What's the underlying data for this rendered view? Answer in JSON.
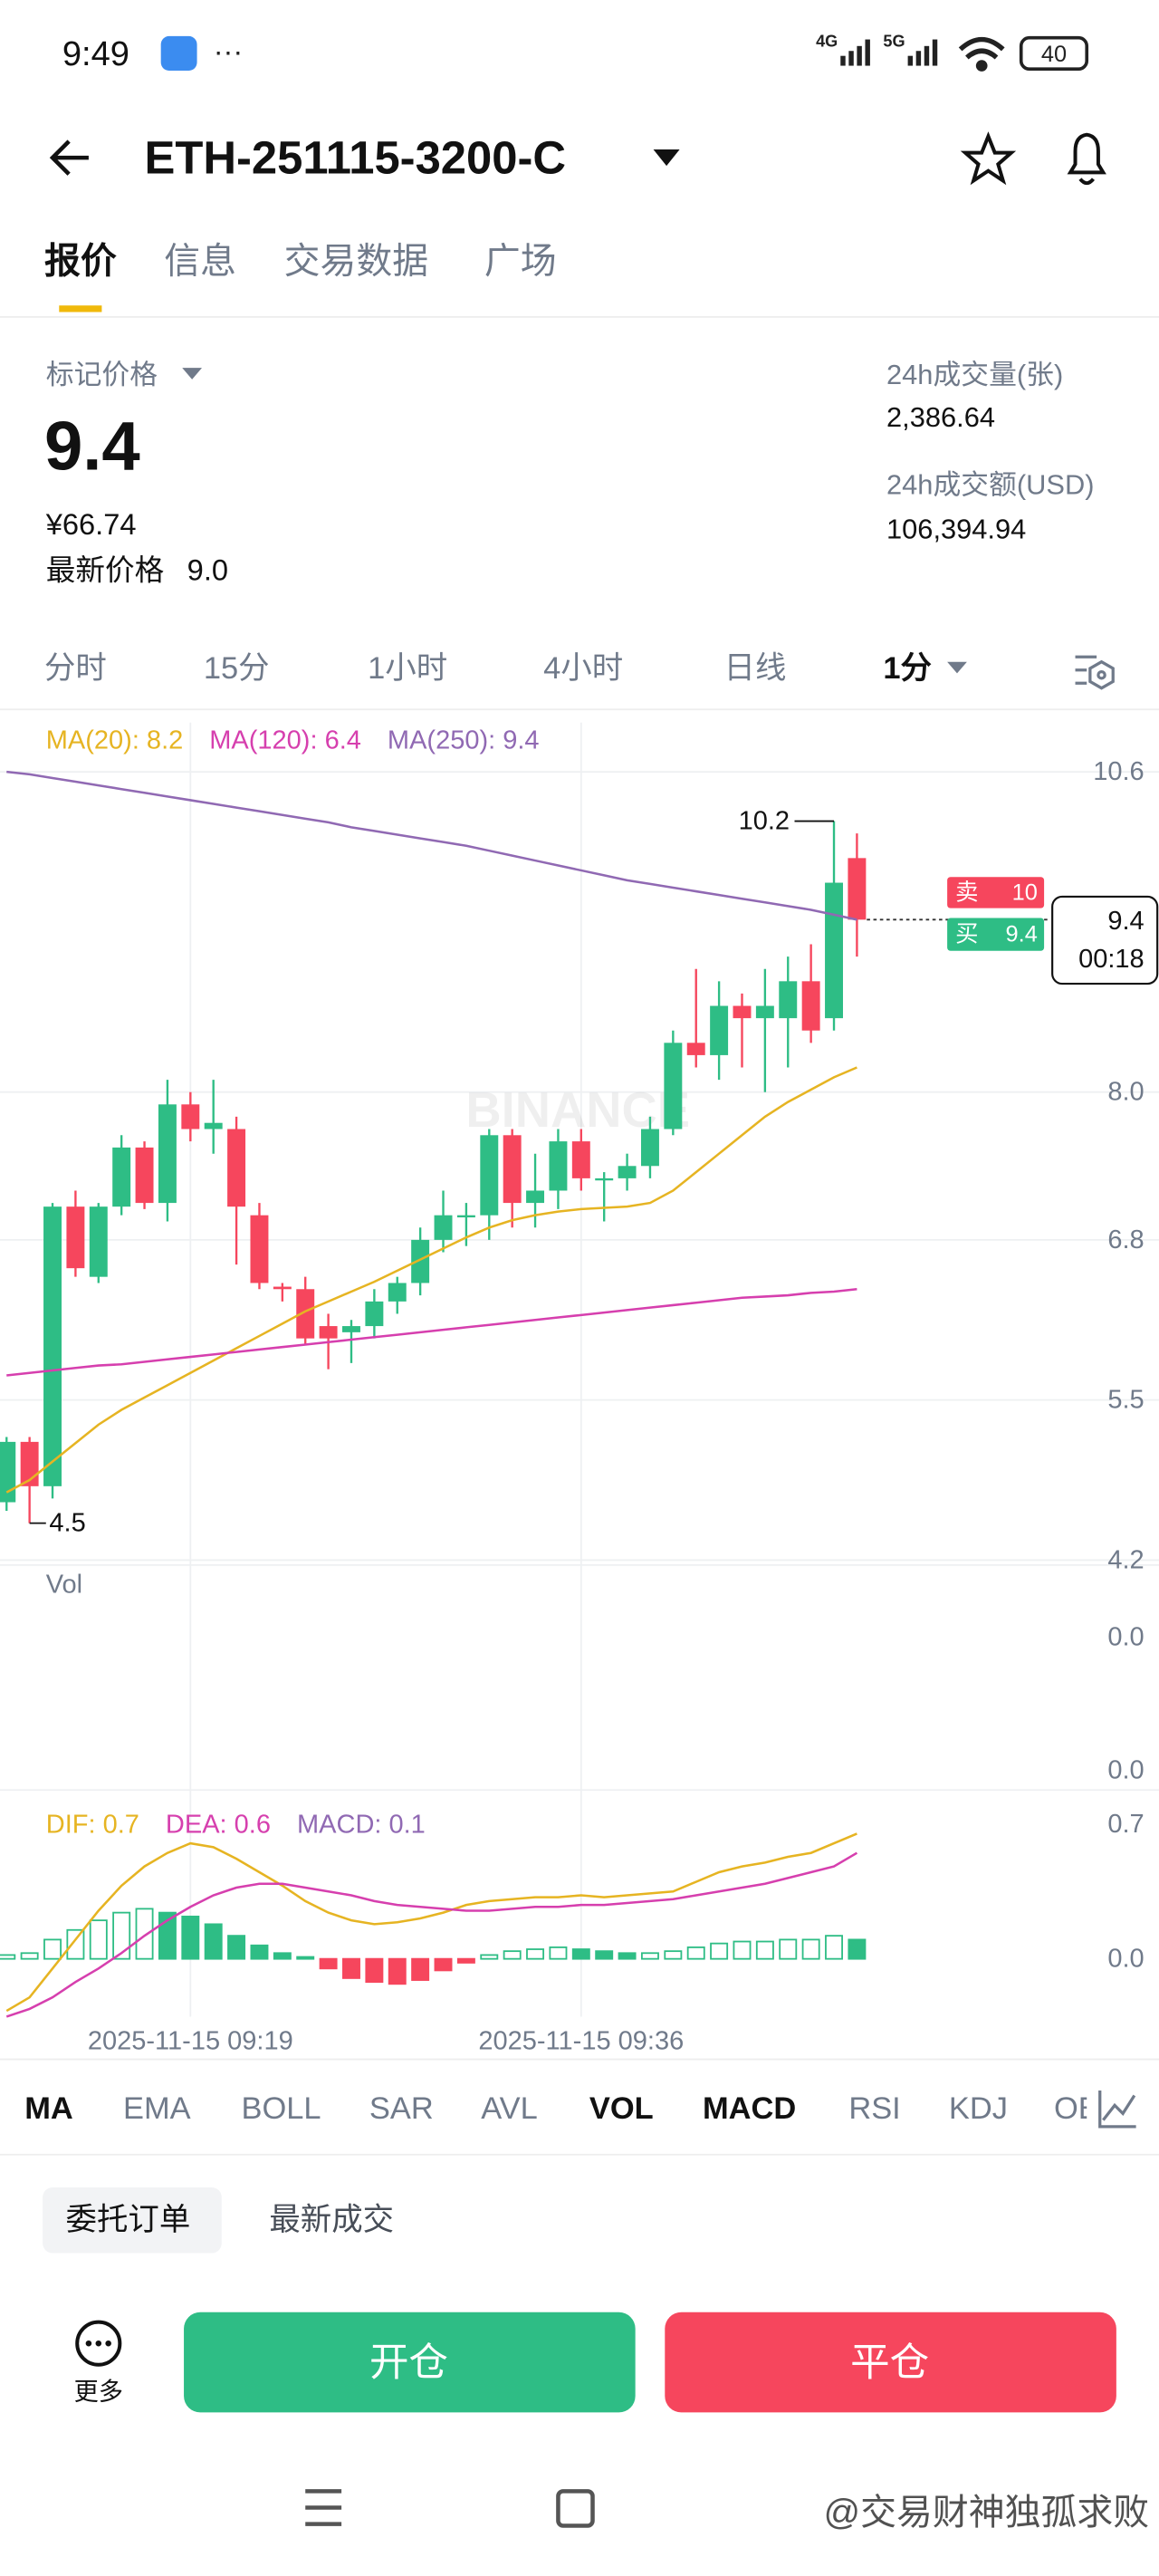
{
  "status_bar": {
    "time": "9:49",
    "signal_1": "4G",
    "signal_2": "5G",
    "battery": "40"
  },
  "header": {
    "title": "ETH-251115-3200-C"
  },
  "tabs": [
    "报价",
    "信息",
    "交易数据",
    "广场"
  ],
  "summary": {
    "mark_label": "标记价格",
    "mark_price": "9.4",
    "cny": "¥66.74",
    "last_label": "最新价格",
    "last_price": "9.0",
    "volume_label": "24h成交量(张)",
    "volume": "2,386.64",
    "amount_label": "24h成交额(USD)",
    "amount": "106,394.94"
  },
  "intervals": [
    "分时",
    "15分",
    "1小时",
    "4小时",
    "日线",
    "1分"
  ],
  "chart_data": {
    "type": "candlestick",
    "watermark": "BINANCE",
    "categories": [
      null,
      null,
      null,
      null,
      null,
      null,
      null,
      null,
      "2025-11-15 09:19",
      null,
      null,
      null,
      null,
      null,
      null,
      null,
      null,
      null,
      null,
      null,
      null,
      null,
      null,
      null,
      null,
      "2025-11-15 09:36",
      null,
      null,
      null,
      null,
      null,
      null,
      null,
      null,
      null,
      null,
      null,
      null
    ],
    "open": [
      4.67,
      5.16,
      4.8,
      7.07,
      6.5,
      7.07,
      7.55,
      7.1,
      7.9,
      7.7,
      7.7,
      7.0,
      6.42,
      6.4,
      6.1,
      6.05,
      6.1,
      6.3,
      6.45,
      6.8,
      7.0,
      7.0,
      7.65,
      7.1,
      7.2,
      7.6,
      7.3,
      7.3,
      7.4,
      7.7,
      8.4,
      8.3,
      8.7,
      8.6,
      8.6,
      8.9,
      8.6,
      9.9
    ],
    "high": [
      5.2,
      5.2,
      7.1,
      7.2,
      7.1,
      7.65,
      7.6,
      8.1,
      8.0,
      8.1,
      7.8,
      7.1,
      6.45,
      6.5,
      6.2,
      6.15,
      6.4,
      6.5,
      6.9,
      7.2,
      7.1,
      7.7,
      7.7,
      7.5,
      7.7,
      7.7,
      7.35,
      7.5,
      7.8,
      8.5,
      9.0,
      8.9,
      8.8,
      9.0,
      9.1,
      9.2,
      10.2,
      10.1
    ],
    "low": [
      4.6,
      4.5,
      4.7,
      6.5,
      6.45,
      7.0,
      7.05,
      6.95,
      7.6,
      7.5,
      6.6,
      6.4,
      6.3,
      5.95,
      5.75,
      5.8,
      6.0,
      6.2,
      6.35,
      6.7,
      6.75,
      6.8,
      6.9,
      6.9,
      7.05,
      7.2,
      6.95,
      7.2,
      7.3,
      7.65,
      8.2,
      8.1,
      8.2,
      8.0,
      8.2,
      8.4,
      8.5,
      9.1
    ],
    "close": [
      5.16,
      4.8,
      7.07,
      6.57,
      7.07,
      7.55,
      7.1,
      7.9,
      7.7,
      7.75,
      7.07,
      6.45,
      6.4,
      6.0,
      6.0,
      6.1,
      6.3,
      6.45,
      6.8,
      7.0,
      7.0,
      7.65,
      7.1,
      7.2,
      7.6,
      7.3,
      7.3,
      7.4,
      7.7,
      8.4,
      8.3,
      8.7,
      8.6,
      8.7,
      8.9,
      8.5,
      9.7,
      9.4
    ],
    "up_color": "#2ebd85",
    "down_color": "#f6465d",
    "ma_lines": [
      {
        "legend": "MA(20): 8.2",
        "color": "#e6b422",
        "values": [
          4.75,
          4.85,
          5.0,
          5.15,
          5.3,
          5.42,
          5.52,
          5.62,
          5.72,
          5.82,
          5.92,
          6.02,
          6.12,
          6.22,
          6.3,
          6.38,
          6.46,
          6.55,
          6.64,
          6.73,
          6.82,
          6.9,
          6.96,
          7.0,
          7.03,
          7.05,
          7.06,
          7.07,
          7.1,
          7.2,
          7.35,
          7.5,
          7.65,
          7.8,
          7.92,
          8.02,
          8.12,
          8.2
        ]
      },
      {
        "legend": "MA(120): 6.4",
        "color": "#d63fae",
        "values": [
          5.7,
          5.72,
          5.74,
          5.76,
          5.78,
          5.79,
          5.81,
          5.83,
          5.85,
          5.87,
          5.89,
          5.91,
          5.93,
          5.95,
          5.97,
          5.99,
          6.01,
          6.03,
          6.05,
          6.07,
          6.09,
          6.11,
          6.13,
          6.15,
          6.17,
          6.19,
          6.21,
          6.23,
          6.25,
          6.27,
          6.29,
          6.31,
          6.33,
          6.34,
          6.35,
          6.37,
          6.38,
          6.4
        ]
      },
      {
        "legend": "MA(250): 9.4",
        "color": "#9069b3",
        "values": [
          10.6,
          10.58,
          10.55,
          10.52,
          10.49,
          10.46,
          10.43,
          10.4,
          10.37,
          10.34,
          10.31,
          10.28,
          10.25,
          10.22,
          10.19,
          10.15,
          10.12,
          10.09,
          10.06,
          10.03,
          10.0,
          9.96,
          9.92,
          9.88,
          9.84,
          9.8,
          9.76,
          9.72,
          9.69,
          9.66,
          9.63,
          9.6,
          9.57,
          9.54,
          9.51,
          9.48,
          9.44,
          9.4
        ]
      }
    ],
    "ylim": [
      4.2,
      11.0
    ],
    "yticks": [
      10.6,
      {
        "value": 8,
        "label": "8.0"
      },
      6.8,
      5.5,
      4.2
    ],
    "high_label": 10.2,
    "low_label": 4.5,
    "price_tags": {
      "sell_label": "卖",
      "sell": "10",
      "buy_label": "买",
      "buy": "9.4",
      "last": "9.4",
      "countdown": "00:18"
    },
    "volume": {
      "label": "Vol",
      "axis_labels": [
        "0.0",
        "0.0"
      ]
    },
    "macd": {
      "legend": [
        {
          "label": "DIF: 0.7",
          "color": "#e6b422"
        },
        {
          "label": "DEA: 0.6",
          "color": "#d63fae"
        },
        {
          "label": "MACD: 0.1",
          "color": "#9069b3"
        }
      ],
      "dif": [
        -0.27,
        -0.2,
        -0.05,
        0.1,
        0.25,
        0.38,
        0.48,
        0.55,
        0.6,
        0.58,
        0.52,
        0.45,
        0.38,
        0.3,
        0.24,
        0.2,
        0.18,
        0.19,
        0.21,
        0.24,
        0.28,
        0.3,
        0.31,
        0.32,
        0.32,
        0.33,
        0.32,
        0.33,
        0.34,
        0.35,
        0.4,
        0.45,
        0.48,
        0.5,
        0.53,
        0.55,
        0.6,
        0.65
      ],
      "dea": [
        -0.3,
        -0.26,
        -0.2,
        -0.12,
        -0.05,
        0.03,
        0.12,
        0.2,
        0.27,
        0.33,
        0.37,
        0.39,
        0.39,
        0.37,
        0.35,
        0.33,
        0.3,
        0.28,
        0.27,
        0.26,
        0.25,
        0.25,
        0.26,
        0.27,
        0.27,
        0.28,
        0.28,
        0.29,
        0.3,
        0.31,
        0.33,
        0.35,
        0.37,
        0.39,
        0.42,
        0.45,
        0.48,
        0.55
      ],
      "hist": [
        0.02,
        0.03,
        0.1,
        0.15,
        0.2,
        0.24,
        0.26,
        0.24,
        0.22,
        0.18,
        0.12,
        0.07,
        0.03,
        0.01,
        -0.05,
        -0.1,
        -0.12,
        -0.13,
        -0.11,
        -0.06,
        -0.02,
        0.02,
        0.04,
        0.05,
        0.06,
        0.05,
        0.04,
        0.03,
        0.03,
        0.04,
        0.06,
        0.08,
        0.09,
        0.09,
        0.1,
        0.1,
        0.12,
        0.1
      ],
      "ylim": [
        -0.3,
        0.8
      ],
      "yticks": [
        0.7,
        {
          "value": 0,
          "label": "0.0"
        }
      ]
    }
  },
  "indicators": [
    {
      "label": "MA",
      "active": true
    },
    {
      "label": "EMA",
      "active": false
    },
    {
      "label": "BOLL",
      "active": false
    },
    {
      "label": "SAR",
      "active": false
    },
    {
      "label": "AVL",
      "active": false
    },
    {
      "label": "VOL",
      "active": true
    },
    {
      "label": "MACD",
      "active": true
    },
    {
      "label": "RSI",
      "active": false
    },
    {
      "label": "KDJ",
      "active": false
    },
    {
      "label": "OBV",
      "active": false
    }
  ],
  "orders": [
    "委托订单",
    "最新成交"
  ],
  "actions": {
    "more": "更多",
    "open": "开仓",
    "close": "平仓"
  },
  "footer": {
    "watermark": "@交易财神独孤求败"
  }
}
